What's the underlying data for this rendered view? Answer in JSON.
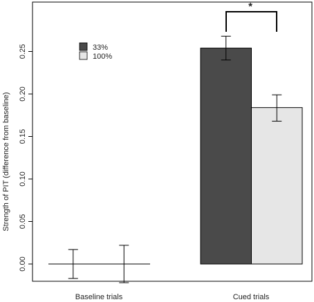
{
  "chart_data": {
    "type": "bar",
    "title": "",
    "xlabel": "",
    "ylabel": "Strength of PIT (difference from baseline)",
    "categories": [
      "Baseline trials",
      "Cued trials"
    ],
    "series": [
      {
        "name": "33%",
        "color": "#4a4a4a",
        "values": [
          0.0,
          0.254
        ],
        "error_low": [
          -0.017,
          0.24
        ],
        "error_high": [
          0.017,
          0.268
        ]
      },
      {
        "name": "100%",
        "color": "#e6e6e6",
        "values": [
          0.0,
          0.184
        ],
        "error_low": [
          -0.022,
          0.168
        ],
        "error_high": [
          0.022,
          0.199
        ]
      }
    ],
    "ylim": [
      -0.024,
      0.3
    ],
    "yticks": [
      "0.00",
      "0.05",
      "0.10",
      "0.15",
      "0.20",
      "0.25"
    ],
    "ytick_values": [
      0.0,
      0.05,
      0.1,
      0.15,
      0.2,
      0.25
    ],
    "legend_position": "top-left",
    "significance": {
      "label": "*",
      "category": "Cued trials"
    },
    "grid": false
  }
}
